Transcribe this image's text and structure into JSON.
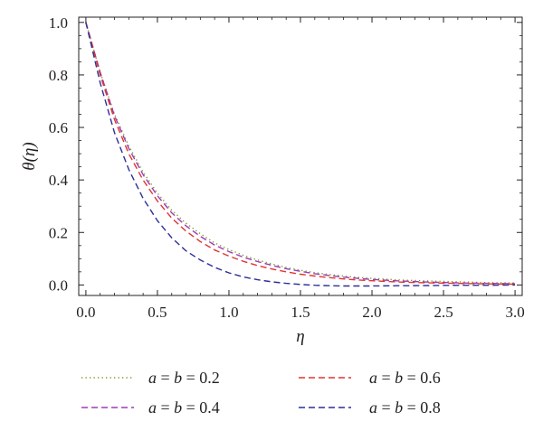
{
  "chart_data": {
    "type": "line",
    "xlabel": "η",
    "ylabel": "θ(η)",
    "xlim": [
      -0.05,
      3.05
    ],
    "ylim": [
      -0.04,
      1.02
    ],
    "x_ticks": [
      "0.0",
      "0.5",
      "1.0",
      "1.5",
      "2.0",
      "2.5",
      "3.0"
    ],
    "y_ticks": [
      "0.0",
      "0.2",
      "0.4",
      "0.6",
      "0.8",
      "1.0"
    ],
    "grid": false,
    "legend_position": "bottom",
    "x": [
      0.0,
      0.1,
      0.2,
      0.3,
      0.4,
      0.5,
      0.6,
      0.7,
      0.8,
      0.9,
      1.0,
      1.1,
      1.2,
      1.3,
      1.4,
      1.5,
      1.6,
      1.7,
      1.8,
      1.9,
      2.0,
      2.2,
      2.4,
      2.6,
      2.8,
      3.0
    ],
    "series": [
      {
        "name": "a = b = 0.2",
        "color": "#7a9a2b",
        "dash": "dotted",
        "values": [
          1.0,
          0.81,
          0.65,
          0.53,
          0.43,
          0.35,
          0.285,
          0.235,
          0.195,
          0.16,
          0.135,
          0.113,
          0.095,
          0.08,
          0.067,
          0.056,
          0.047,
          0.04,
          0.034,
          0.029,
          0.025,
          0.019,
          0.015,
          0.012,
          0.009,
          0.008
        ]
      },
      {
        "name": "a = b = 0.4",
        "color": "#9b3bb5",
        "dash": "dashed",
        "values": [
          1.0,
          0.81,
          0.645,
          0.52,
          0.42,
          0.34,
          0.275,
          0.225,
          0.185,
          0.152,
          0.127,
          0.106,
          0.089,
          0.075,
          0.062,
          0.052,
          0.043,
          0.036,
          0.03,
          0.025,
          0.021,
          0.015,
          0.011,
          0.008,
          0.006,
          0.005
        ]
      },
      {
        "name": "a = b = 0.6",
        "color": "#e0352b",
        "dash": "dashed",
        "values": [
          1.0,
          0.8,
          0.63,
          0.5,
          0.4,
          0.32,
          0.255,
          0.205,
          0.165,
          0.133,
          0.11,
          0.09,
          0.074,
          0.061,
          0.05,
          0.041,
          0.034,
          0.028,
          0.023,
          0.019,
          0.016,
          0.011,
          0.008,
          0.006,
          0.004,
          0.003
        ]
      },
      {
        "name": "a = b = 0.8",
        "color": "#2b2f95",
        "dash": "dashed",
        "values": [
          1.0,
          0.77,
          0.58,
          0.44,
          0.33,
          0.245,
          0.18,
          0.13,
          0.095,
          0.067,
          0.046,
          0.031,
          0.02,
          0.012,
          0.006,
          0.002,
          -0.001,
          -0.003,
          -0.004,
          -0.004,
          -0.004,
          -0.003,
          -0.002,
          -0.001,
          -0.001,
          0.0
        ]
      }
    ]
  },
  "legend": [
    {
      "prefix": "a",
      "mid": " = ",
      "var2": "b",
      "suffix": " = 0.2"
    },
    {
      "prefix": "a",
      "mid": " = ",
      "var2": "b",
      "suffix": " = 0.4"
    },
    {
      "prefix": "a",
      "mid": " = ",
      "var2": "b",
      "suffix": " = 0.6"
    },
    {
      "prefix": "a",
      "mid": " = ",
      "var2": "b",
      "suffix": " = 0.8"
    }
  ]
}
